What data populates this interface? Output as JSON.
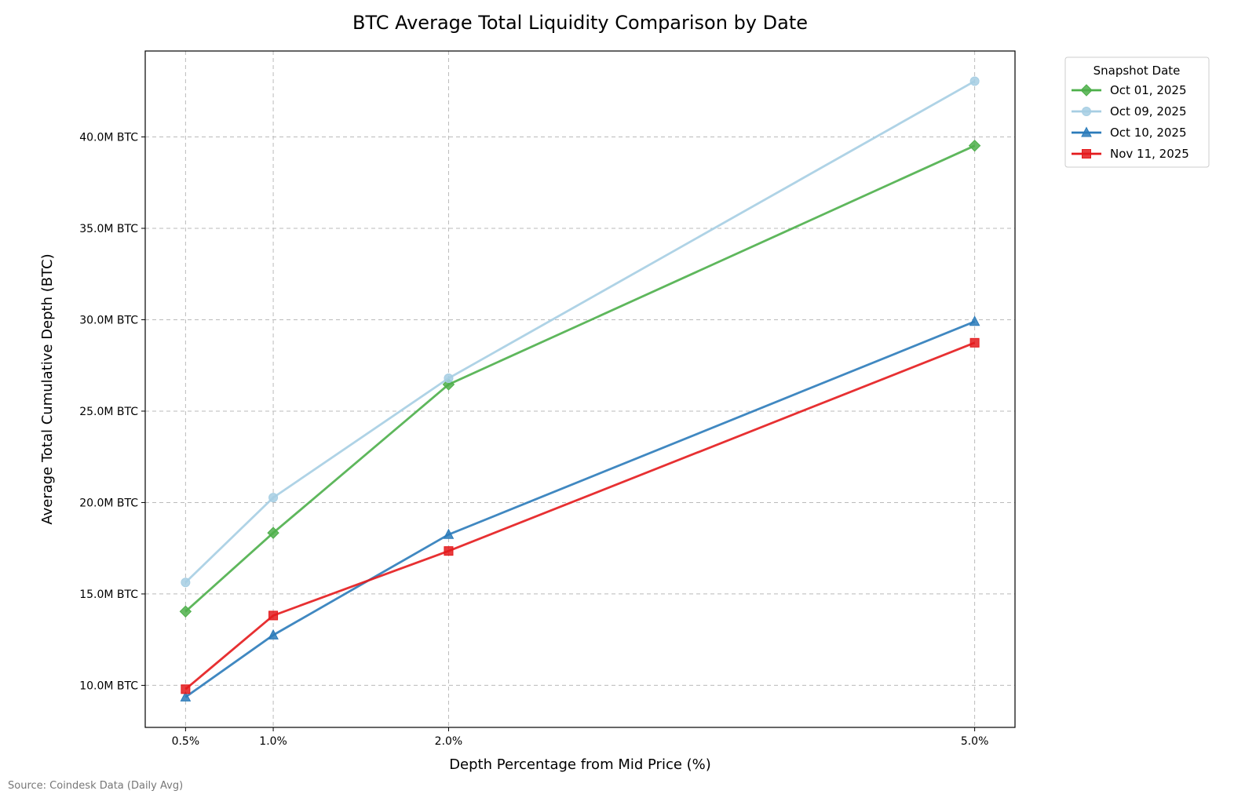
{
  "chart_data": {
    "type": "line",
    "title": "BTC Average Total Liquidity Comparison by Date",
    "xlabel": "Depth Percentage from Mid Price (%)",
    "ylabel": "Average Total Cumulative Depth (BTC)",
    "x": [
      0.5,
      1.0,
      2.0,
      5.0
    ],
    "x_tick_labels": [
      "0.5%",
      "1.0%",
      "2.0%",
      "5.0%"
    ],
    "y_ticks": [
      10,
      15,
      20,
      25,
      30,
      35,
      40
    ],
    "y_tick_labels": [
      "10.0M BTC",
      "15.0M BTC",
      "20.0M BTC",
      "25.0M BTC",
      "30.0M BTC",
      "35.0M BTC",
      "40.0M BTC"
    ],
    "y_unit": "M BTC",
    "xlim": [
      0.27,
      5.23
    ],
    "ylim": [
      7.7,
      44.7
    ],
    "grid": true,
    "legend": {
      "title": "Snapshot Date",
      "placement": "outside-top-right"
    },
    "series": [
      {
        "name": "Oct 01, 2025",
        "color": "#4daf4a",
        "marker": "diamond",
        "values": [
          14.04,
          18.34,
          26.46,
          39.52
        ]
      },
      {
        "name": "Oct 09, 2025",
        "color": "#a6cee3",
        "marker": "circle",
        "values": [
          15.63,
          20.27,
          26.8,
          43.05
        ]
      },
      {
        "name": "Oct 10, 2025",
        "color": "#2b7bba",
        "marker": "triangle",
        "values": [
          9.36,
          12.75,
          18.25,
          29.9
        ]
      },
      {
        "name": "Nov 11, 2025",
        "color": "#e41a1c",
        "marker": "square",
        "values": [
          9.79,
          13.82,
          17.35,
          28.74
        ]
      }
    ],
    "annotation": "Source: Coindesk Data (Daily Avg)"
  }
}
